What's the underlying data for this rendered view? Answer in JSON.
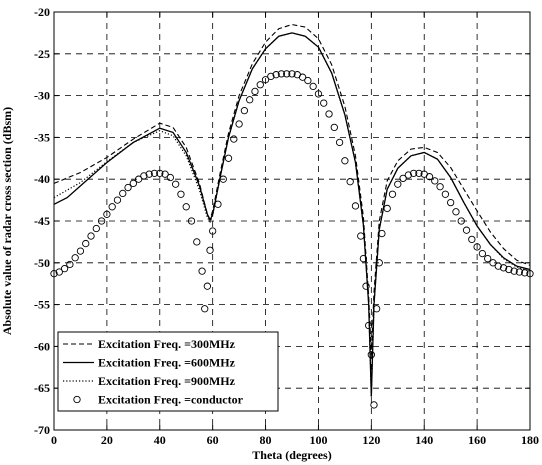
{
  "chart_data": {
    "type": "line",
    "xlabel": "Theta (degrees)",
    "ylabel": "Absolute value of radar cross section (dBsm)",
    "xlim": [
      0,
      180
    ],
    "ylim": [
      -70,
      -20
    ],
    "xticks": [
      "0",
      "20",
      "40",
      "60",
      "80",
      "100",
      "120",
      "140",
      "160",
      "180"
    ],
    "yticks": [
      "-20",
      "-25",
      "-30",
      "-35",
      "-40",
      "-45",
      "-50",
      "-55",
      "-60",
      "-65",
      "-70"
    ],
    "grid": true,
    "legend_position": "bottom-left",
    "series": [
      {
        "name": "Excitation Freq. =300MHz",
        "style": "dashed",
        "points": [
          [
            0,
            -40.5
          ],
          [
            10,
            -39.2
          ],
          [
            20,
            -37.4
          ],
          [
            30,
            -35.2
          ],
          [
            40,
            -33.3
          ],
          [
            45,
            -33.8
          ],
          [
            50,
            -36.2
          ],
          [
            55,
            -40.5
          ],
          [
            58,
            -44.2
          ],
          [
            59,
            -44.8
          ],
          [
            60,
            -43.8
          ],
          [
            63,
            -39.0
          ],
          [
            66,
            -34.5
          ],
          [
            70,
            -30.0
          ],
          [
            75,
            -26.2
          ],
          [
            80,
            -23.6
          ],
          [
            85,
            -22.0
          ],
          [
            90,
            -21.5
          ],
          [
            95,
            -21.8
          ],
          [
            100,
            -23.2
          ],
          [
            105,
            -26.3
          ],
          [
            110,
            -31.3
          ],
          [
            114,
            -37.2
          ],
          [
            117,
            -44.5
          ],
          [
            119,
            -54.0
          ],
          [
            120,
            -61.0
          ],
          [
            121,
            -53.5
          ],
          [
            123,
            -45.0
          ],
          [
            126,
            -40.2
          ],
          [
            130,
            -37.8
          ],
          [
            135,
            -36.4
          ],
          [
            140,
            -36.2
          ],
          [
            145,
            -36.8
          ],
          [
            150,
            -38.6
          ],
          [
            155,
            -41.2
          ],
          [
            160,
            -43.8
          ],
          [
            165,
            -46.3
          ],
          [
            170,
            -48.3
          ],
          [
            175,
            -49.7
          ],
          [
            180,
            -50.3
          ]
        ]
      },
      {
        "name": "Excitation Freq. =600MHz",
        "style": "solid",
        "points": [
          [
            0,
            -43.0
          ],
          [
            5,
            -42.2
          ],
          [
            10,
            -40.8
          ],
          [
            20,
            -38.0
          ],
          [
            30,
            -35.6
          ],
          [
            40,
            -33.9
          ],
          [
            45,
            -34.4
          ],
          [
            50,
            -36.8
          ],
          [
            55,
            -40.8
          ],
          [
            58,
            -44.2
          ],
          [
            59,
            -44.9
          ],
          [
            60,
            -44.2
          ],
          [
            63,
            -39.5
          ],
          [
            66,
            -35.0
          ],
          [
            70,
            -30.6
          ],
          [
            75,
            -26.8
          ],
          [
            80,
            -24.4
          ],
          [
            85,
            -22.9
          ],
          [
            90,
            -22.5
          ],
          [
            95,
            -22.9
          ],
          [
            100,
            -24.2
          ],
          [
            105,
            -27.3
          ],
          [
            110,
            -32.3
          ],
          [
            114,
            -38.0
          ],
          [
            117,
            -45.5
          ],
          [
            119,
            -55.0
          ],
          [
            120,
            -66.0
          ],
          [
            121,
            -55.0
          ],
          [
            123,
            -46.0
          ],
          [
            126,
            -41.2
          ],
          [
            130,
            -38.7
          ],
          [
            135,
            -37.2
          ],
          [
            140,
            -36.8
          ],
          [
            145,
            -37.6
          ],
          [
            150,
            -39.8
          ],
          [
            155,
            -42.8
          ],
          [
            160,
            -45.6
          ],
          [
            165,
            -47.8
          ],
          [
            170,
            -49.4
          ],
          [
            175,
            -50.4
          ],
          [
            180,
            -50.8
          ]
        ]
      },
      {
        "name": "Excitation Freq. =900MHz",
        "style": "dotted",
        "points": [
          [
            0,
            -42.2
          ],
          [
            10,
            -40.4
          ],
          [
            20,
            -37.9
          ],
          [
            30,
            -35.6
          ],
          [
            40,
            -34.2
          ],
          [
            45,
            -34.8
          ],
          [
            50,
            -37.2
          ],
          [
            55,
            -41.3
          ],
          [
            58,
            -44.6
          ],
          [
            59,
            -45.1
          ],
          [
            60,
            -44.4
          ],
          [
            63,
            -39.5
          ],
          [
            66,
            -35.0
          ],
          [
            70,
            -30.6
          ],
          [
            75,
            -26.8
          ],
          [
            80,
            -24.4
          ],
          [
            85,
            -22.9
          ],
          [
            90,
            -22.5
          ],
          [
            95,
            -22.9
          ],
          [
            100,
            -24.2
          ],
          [
            105,
            -27.3
          ],
          [
            110,
            -32.3
          ],
          [
            114,
            -38.0
          ],
          [
            117,
            -45.5
          ],
          [
            119,
            -55.0
          ],
          [
            120,
            -66.0
          ],
          [
            121,
            -55.0
          ],
          [
            123,
            -46.0
          ],
          [
            126,
            -41.2
          ],
          [
            130,
            -38.7
          ],
          [
            135,
            -37.2
          ],
          [
            140,
            -36.8
          ],
          [
            145,
            -37.6
          ],
          [
            150,
            -39.8
          ],
          [
            155,
            -42.8
          ],
          [
            160,
            -45.6
          ],
          [
            165,
            -47.8
          ],
          [
            170,
            -49.5
          ],
          [
            175,
            -50.5
          ],
          [
            180,
            -51.0
          ]
        ]
      },
      {
        "name": "Excitation Freq. =conductor",
        "style": "circles",
        "points": [
          [
            0,
            -51.3
          ],
          [
            2,
            -51.1
          ],
          [
            4,
            -50.7
          ],
          [
            6,
            -50.2
          ],
          [
            8,
            -49.4
          ],
          [
            10,
            -48.6
          ],
          [
            12,
            -47.7
          ],
          [
            14,
            -46.8
          ],
          [
            16,
            -45.9
          ],
          [
            18,
            -45.0
          ],
          [
            20,
            -44.2
          ],
          [
            22,
            -43.3
          ],
          [
            24,
            -42.5
          ],
          [
            26,
            -41.7
          ],
          [
            28,
            -41.0
          ],
          [
            30,
            -40.5
          ],
          [
            32,
            -40.0
          ],
          [
            34,
            -39.6
          ],
          [
            36,
            -39.4
          ],
          [
            38,
            -39.3
          ],
          [
            40,
            -39.3
          ],
          [
            42,
            -39.4
          ],
          [
            44,
            -39.8
          ],
          [
            46,
            -40.6
          ],
          [
            48,
            -41.8
          ],
          [
            50,
            -43.3
          ],
          [
            52,
            -45.0
          ],
          [
            54,
            -47.5
          ],
          [
            56,
            -51.0
          ],
          [
            57,
            -55.5
          ],
          [
            58,
            -52.8
          ],
          [
            59,
            -48.5
          ],
          [
            60,
            -46.2
          ],
          [
            62,
            -43.0
          ],
          [
            64,
            -40.0
          ],
          [
            66,
            -37.5
          ],
          [
            68,
            -35.2
          ],
          [
            70,
            -33.4
          ],
          [
            72,
            -31.8
          ],
          [
            74,
            -30.5
          ],
          [
            76,
            -29.5
          ],
          [
            78,
            -28.7
          ],
          [
            80,
            -28.1
          ],
          [
            82,
            -27.7
          ],
          [
            84,
            -27.5
          ],
          [
            86,
            -27.4
          ],
          [
            88,
            -27.4
          ],
          [
            90,
            -27.4
          ],
          [
            92,
            -27.5
          ],
          [
            94,
            -27.8
          ],
          [
            96,
            -28.2
          ],
          [
            98,
            -28.9
          ],
          [
            100,
            -29.8
          ],
          [
            102,
            -30.9
          ],
          [
            104,
            -32.2
          ],
          [
            106,
            -33.8
          ],
          [
            108,
            -35.6
          ],
          [
            110,
            -37.8
          ],
          [
            112,
            -40.3
          ],
          [
            114,
            -43.2
          ],
          [
            116,
            -46.8
          ],
          [
            117,
            -49.5
          ],
          [
            118,
            -52.8
          ],
          [
            119,
            -57.5
          ],
          [
            120,
            -61.0
          ],
          [
            121,
            -67.0
          ],
          [
            122,
            -55.5
          ],
          [
            123,
            -50.0
          ],
          [
            124,
            -46.5
          ],
          [
            126,
            -43.5
          ],
          [
            128,
            -41.8
          ],
          [
            130,
            -40.6
          ],
          [
            132,
            -39.9
          ],
          [
            134,
            -39.5
          ],
          [
            136,
            -39.3
          ],
          [
            138,
            -39.3
          ],
          [
            140,
            -39.4
          ],
          [
            142,
            -39.7
          ],
          [
            144,
            -40.2
          ],
          [
            146,
            -40.9
          ],
          [
            148,
            -41.8
          ],
          [
            150,
            -42.8
          ],
          [
            152,
            -43.9
          ],
          [
            154,
            -45.0
          ],
          [
            156,
            -46.1
          ],
          [
            158,
            -47.2
          ],
          [
            160,
            -48.1
          ],
          [
            162,
            -48.9
          ],
          [
            164,
            -49.5
          ],
          [
            166,
            -50.0
          ],
          [
            168,
            -50.4
          ],
          [
            170,
            -50.6
          ],
          [
            172,
            -50.8
          ],
          [
            174,
            -51.0
          ],
          [
            176,
            -51.1
          ],
          [
            178,
            -51.2
          ],
          [
            180,
            -51.3
          ]
        ]
      }
    ]
  }
}
